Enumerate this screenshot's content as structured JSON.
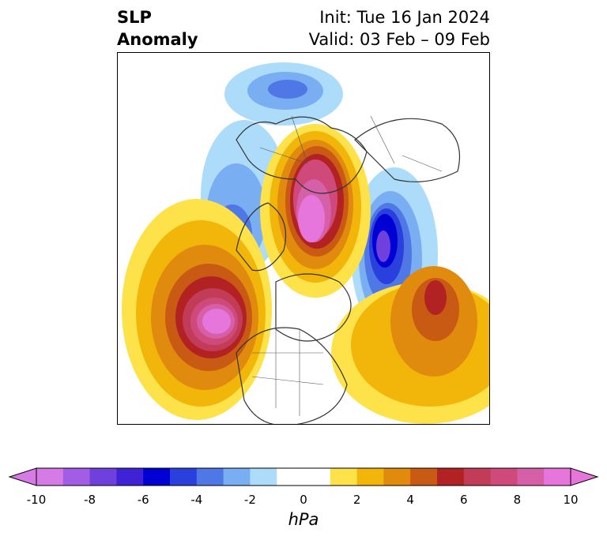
{
  "title": {
    "variable_line1": "SLP",
    "variable_line2": "Anomaly",
    "init": "Init: Tue 16 Jan 2024",
    "valid": "Valid: 03 Feb – 09 Feb"
  },
  "colorbar": {
    "unit": "hPa",
    "min": -10,
    "max": 10,
    "step": 1,
    "tick_labels": [
      "-10",
      "-8",
      "-6",
      "-4",
      "-2",
      "0",
      "2",
      "4",
      "6",
      "8",
      "10"
    ],
    "colors": [
      "#d67ae6",
      "#a35ce6",
      "#7040dc",
      "#4022d6",
      "#0000d4",
      "#2a40dc",
      "#4f77e6",
      "#7aaef2",
      "#acdcfa",
      "#ffffff",
      "#ffffff",
      "#fde24a",
      "#f2b50a",
      "#e08a0e",
      "#c85a14",
      "#b22222",
      "#c23c58",
      "#cf4a7a",
      "#d660a8",
      "#e676dc"
    ],
    "extend": "both"
  },
  "map": {
    "projection": "north-polar-stereographic",
    "region": "Northern Hemisphere",
    "features": [
      "SLP anomaly contours",
      "coastlines",
      "country borders",
      "US state borders"
    ],
    "centers": [
      {
        "sign": "positive",
        "region": "Arctic / Siberia",
        "max": 9
      },
      {
        "sign": "positive",
        "region": "North Pacific / Gulf of Alaska",
        "max": 10
      },
      {
        "sign": "positive",
        "region": "North Atlantic",
        "max": 6
      },
      {
        "sign": "negative",
        "region": "Western Europe",
        "min": -7
      },
      {
        "sign": "negative",
        "region": "Eastern Siberia / Japan",
        "min": -6
      }
    ]
  }
}
